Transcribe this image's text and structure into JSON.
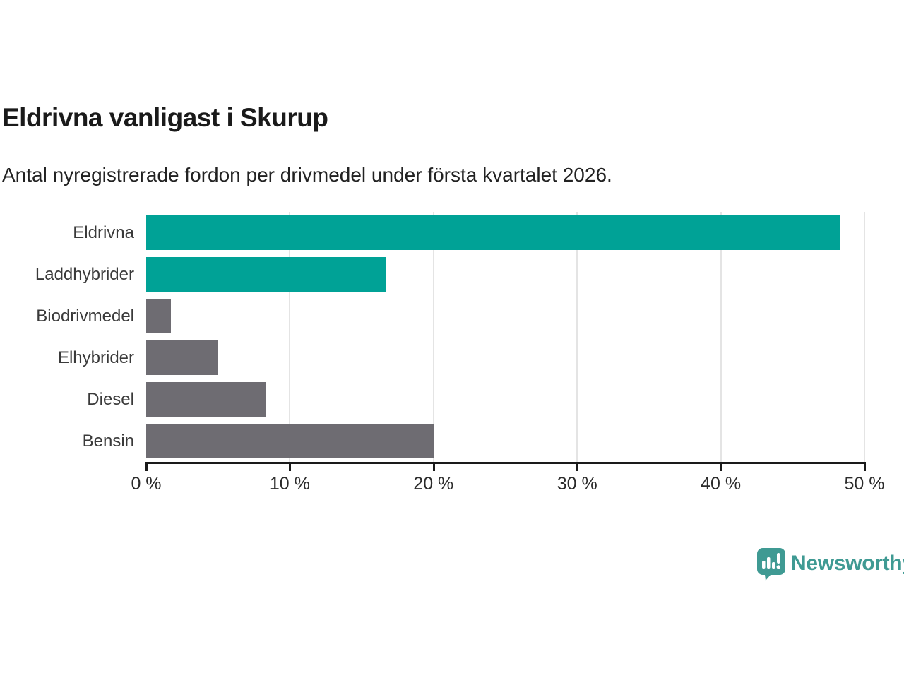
{
  "header": {
    "title": "Eldrivna vanligast i Skurup",
    "subtitle": "Antal nyregistrerade fordon per drivmedel under första kvartalet 2026."
  },
  "chart_data": {
    "type": "bar",
    "orientation": "horizontal",
    "title": "Eldrivna vanligast i Skurup",
    "subtitle": "Antal nyregistrerade fordon per drivmedel under första kvartalet 2026.",
    "categories": [
      "Eldrivna",
      "Laddhybrider",
      "Biodrivmedel",
      "Elhybrider",
      "Diesel",
      "Bensin"
    ],
    "values": [
      48.3,
      16.7,
      1.7,
      5.0,
      8.3,
      20.0
    ],
    "unit": "%",
    "bar_colors": [
      "#00a296",
      "#00a296",
      "#6e6c72",
      "#6e6c72",
      "#6e6c72",
      "#6e6c72"
    ],
    "xlim": [
      0,
      50
    ],
    "x_ticks": [
      0,
      10,
      20,
      30,
      40,
      50
    ],
    "x_tick_labels": [
      "0 %",
      "10 %",
      "20 %",
      "30 %",
      "40 %",
      "50 %"
    ],
    "grid": "vertical-gridlines-on",
    "legend": "none"
  },
  "colors": {
    "accent_teal": "#00a296",
    "neutral_gray": "#6e6c72",
    "gridline": "#e4e4e4",
    "axis": "#1a1a1a",
    "label_text": "#3a3a3a",
    "brand_teal": "#3f9a93"
  },
  "footer": {
    "brand": "Newsworthy",
    "logo_icon": "newsworthy-speech-bubble-chart-icon"
  }
}
